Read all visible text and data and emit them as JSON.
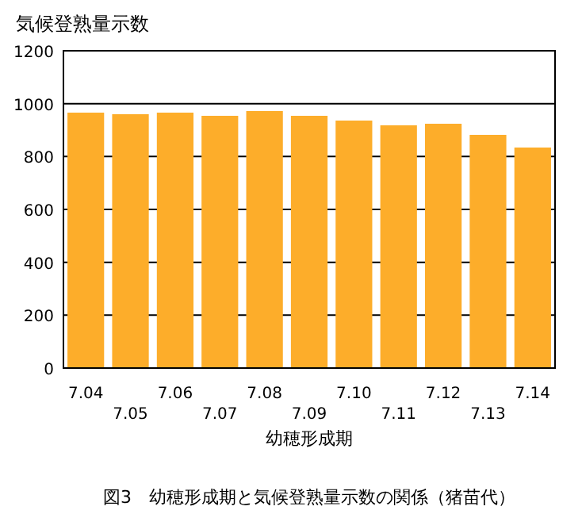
{
  "chart_data": {
    "type": "bar",
    "title": "図3　幼穂形成期と気候登熟量示数の関係（猪苗代）",
    "ylabel": "気候登熟量示数",
    "xlabel": "幼穂形成期",
    "categories": [
      "7.04",
      "7.05",
      "7.06",
      "7.07",
      "7.08",
      "7.09",
      "7.10",
      "7.11",
      "7.12",
      "7.13",
      "7.14"
    ],
    "values": [
      966,
      960,
      966,
      954,
      972,
      954,
      936,
      918,
      924,
      882,
      834
    ],
    "color": "#fdad2a",
    "ylim": [
      0,
      1200
    ],
    "yticks": [
      0,
      200,
      400,
      600,
      800,
      1000,
      1200
    ],
    "grid": "y"
  }
}
